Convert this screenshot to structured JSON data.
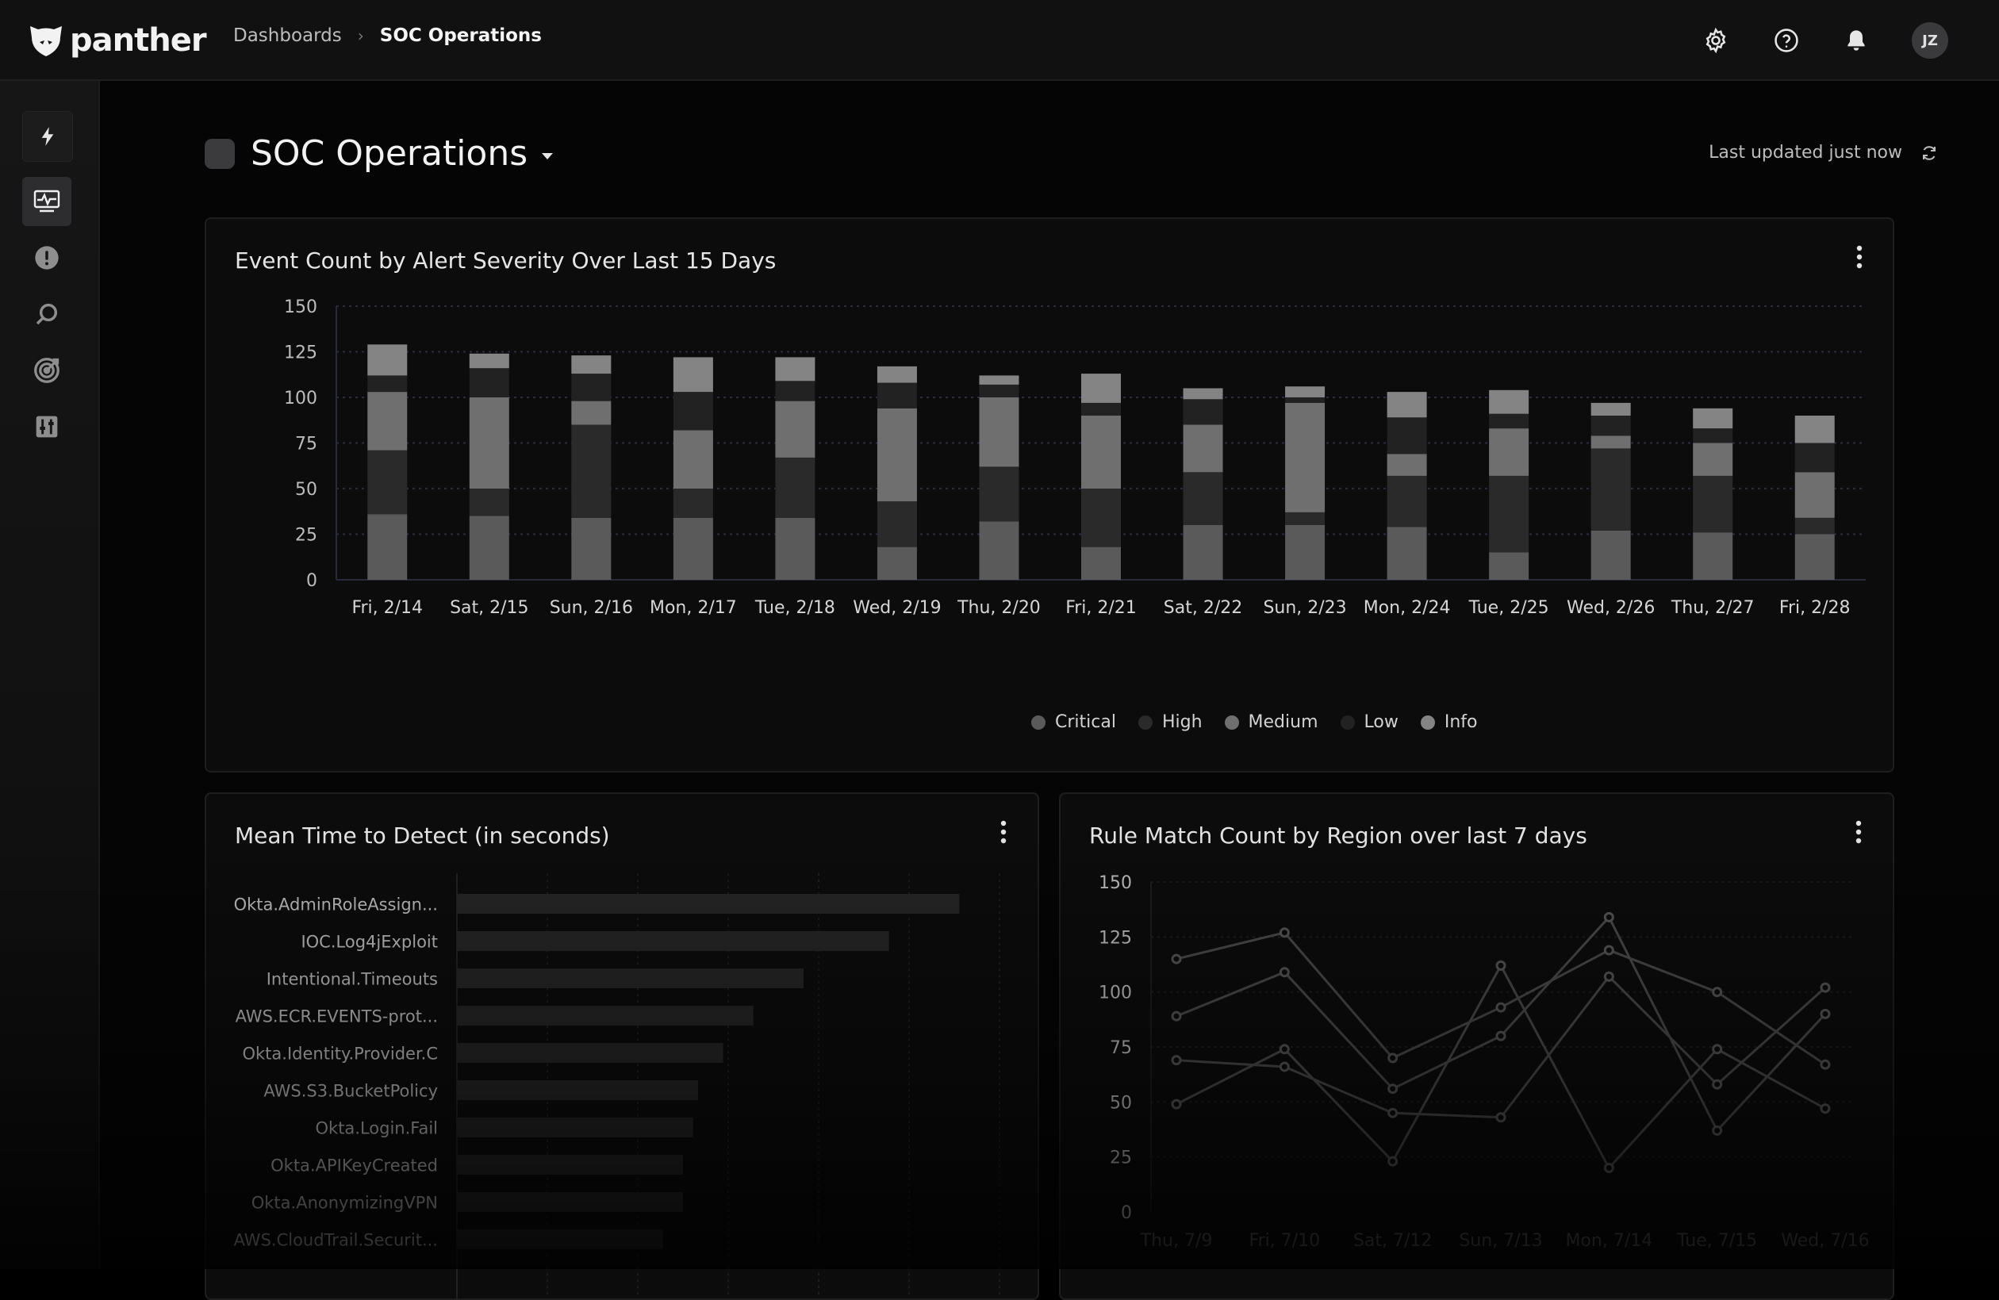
{
  "app": {
    "brand": "panther"
  },
  "breadcrumb": {
    "parent": "Dashboards",
    "current": "SOC Operations",
    "separator": "›"
  },
  "topbar": {
    "avatar_initials": "JZ",
    "icons": [
      "gear-icon",
      "help-icon",
      "bell-icon"
    ]
  },
  "sidebar": {
    "items": [
      {
        "name": "bolt-icon",
        "active": false
      },
      {
        "name": "dashboard-icon",
        "active": true
      },
      {
        "name": "alert-icon",
        "active": false
      },
      {
        "name": "search-icon",
        "active": false
      },
      {
        "name": "target-icon",
        "active": false
      },
      {
        "name": "settings-sliders-icon",
        "active": false
      }
    ]
  },
  "dashboard": {
    "title": "SOC Operations",
    "last_updated": "Last updated just now"
  },
  "colors": {
    "critical": "#5a5a5a",
    "high": "#2a2a2a",
    "medium": "#6f6f6f",
    "low": "#222222",
    "info": "#848484",
    "bar_neutral": "#262626",
    "line": "#4a4a4a"
  },
  "severity_chart": {
    "title": "Event Count by Alert Severity Over Last 15 Days",
    "legend": [
      "Critical",
      "High",
      "Medium",
      "Low",
      "Info"
    ],
    "chart_data": {
      "type": "bar",
      "stacked": true,
      "categories": [
        "Fri, 2/14",
        "Sat, 2/15",
        "Sun, 2/16",
        "Mon, 2/17",
        "Tue, 2/18",
        "Wed, 2/19",
        "Thu, 2/20",
        "Fri, 2/21",
        "Sat, 2/22",
        "Sun, 2/23",
        "Mon, 2/24",
        "Tue, 2/25",
        "Wed, 2/26",
        "Thu, 2/27",
        "Fri, 2/28"
      ],
      "series": [
        {
          "name": "Critical",
          "values": [
            36,
            35,
            34,
            34,
            34,
            18,
            32,
            18,
            30,
            30,
            29,
            15,
            27,
            26,
            25
          ]
        },
        {
          "name": "High",
          "values": [
            35,
            15,
            51,
            16,
            33,
            25,
            30,
            32,
            29,
            7,
            28,
            42,
            45,
            31,
            9
          ]
        },
        {
          "name": "Medium",
          "values": [
            32,
            50,
            13,
            32,
            31,
            51,
            38,
            40,
            26,
            60,
            12,
            26,
            7,
            18,
            25
          ]
        },
        {
          "name": "Low",
          "values": [
            9,
            16,
            15,
            21,
            11,
            14,
            7,
            7,
            14,
            3,
            20,
            8,
            11,
            8,
            16
          ]
        },
        {
          "name": "Info",
          "values": [
            17,
            8,
            10,
            19,
            13,
            9,
            5,
            16,
            6,
            6,
            14,
            13,
            7,
            11,
            15
          ]
        }
      ],
      "yticks": [
        0,
        25,
        50,
        75,
        100,
        125,
        150
      ],
      "ylim": [
        0,
        150
      ],
      "grid": true,
      "legend_position": "bottom-center"
    }
  },
  "mttd_chart": {
    "title": "Mean Time to Detect (in seconds)",
    "chart_data": {
      "type": "bar",
      "orientation": "horizontal",
      "categories": [
        "Okta.AdminRoleAssign...",
        "IOC.Log4jExploit",
        "Intentional.Timeouts",
        "AWS.ECR.EVENTS-prot...",
        "Okta.Identity.Provider.C",
        "AWS.S3.BucketPolicy",
        "Okta.Login.Fail",
        "Okta.APIKeyCreated",
        "Okta.AnonymizingVPN",
        "AWS.CloudTrail.Securit..."
      ],
      "values": [
        100,
        86,
        69,
        59,
        53,
        48,
        47,
        45,
        45,
        41
      ],
      "xlim": [
        0,
        108
      ],
      "grid": true
    }
  },
  "region_chart": {
    "title": "Rule Match Count by Region over last 7 days",
    "chart_data": {
      "type": "line",
      "x": [
        "Thu, 7/9",
        "Fri, 7/10",
        "Sat, 7/12",
        "Sun, 7/13",
        "Mon, 7/14",
        "Tue, 7/15",
        "Wed, 7/16"
      ],
      "series": [
        {
          "values": [
            115,
            127,
            70,
            93,
            119,
            100,
            67
          ]
        },
        {
          "values": [
            89,
            109,
            56,
            80,
            134,
            37,
            90
          ]
        },
        {
          "values": [
            49,
            74,
            23,
            112,
            20,
            74,
            47
          ]
        },
        {
          "values": [
            69,
            66,
            45,
            43,
            107,
            58,
            102
          ]
        }
      ],
      "yticks": [
        0,
        25,
        50,
        75,
        100,
        125,
        150
      ],
      "ylim": [
        0,
        150
      ],
      "grid": true
    }
  }
}
